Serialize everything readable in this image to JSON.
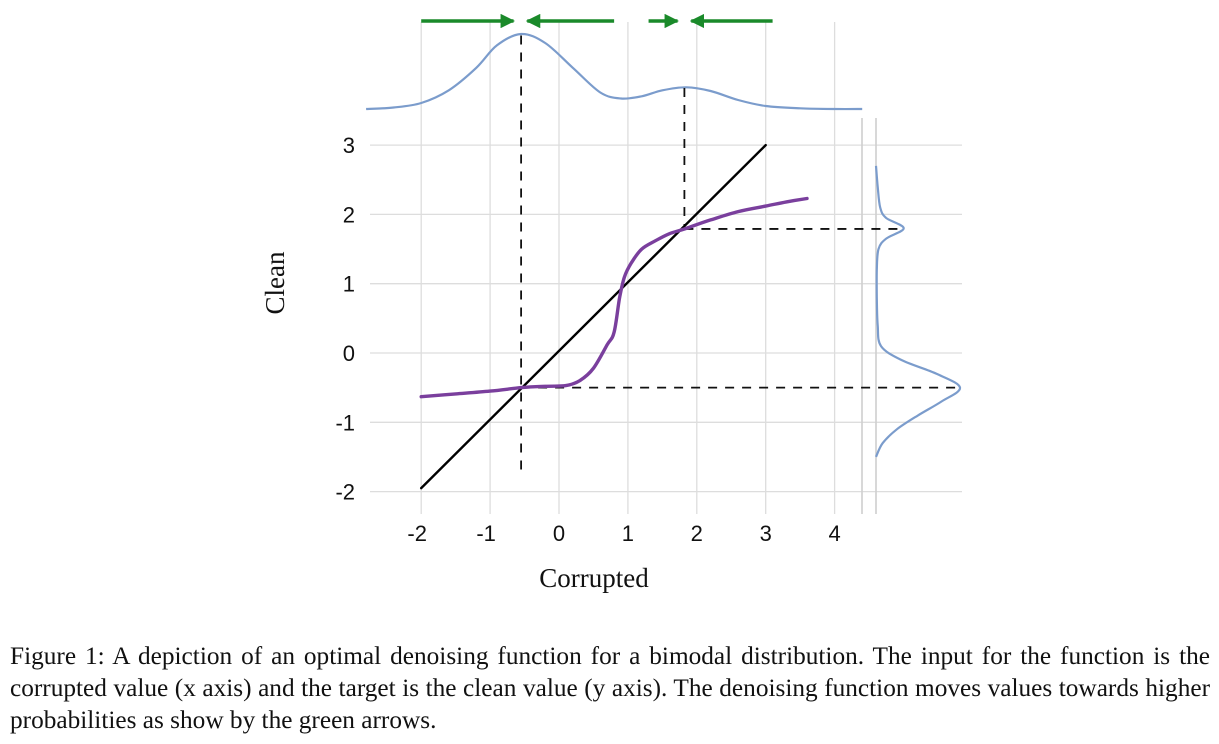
{
  "chart_data": {
    "type": "line",
    "xlabel": "Corrupted",
    "ylabel": "Clean",
    "xlim": [
      -2.6,
      4.4
    ],
    "ylim": [
      -2.2,
      3.2
    ],
    "x_ticks": [
      "-2",
      "-1",
      "0",
      "1",
      "2",
      "3",
      "4"
    ],
    "y_ticks": [
      "-2",
      "-1",
      "0",
      "1",
      "2",
      "3"
    ],
    "grid": true,
    "series": [
      {
        "role": "identity",
        "color": "#000000",
        "points": [
          [
            -2,
            -1.95
          ],
          [
            3,
            3
          ]
        ]
      },
      {
        "role": "denoising-function",
        "color": "#7a3f9d",
        "points": [
          [
            -2,
            -0.63
          ],
          [
            -1.5,
            -0.59
          ],
          [
            -1,
            -0.55
          ],
          [
            -0.55,
            -0.5
          ],
          [
            -0.2,
            -0.48
          ],
          [
            0.1,
            -0.47
          ],
          [
            0.3,
            -0.4
          ],
          [
            0.5,
            -0.22
          ],
          [
            0.7,
            0.12
          ],
          [
            0.8,
            0.3
          ],
          [
            0.88,
            0.8
          ],
          [
            0.95,
            1.1
          ],
          [
            1.05,
            1.3
          ],
          [
            1.2,
            1.5
          ],
          [
            1.4,
            1.62
          ],
          [
            1.6,
            1.72
          ],
          [
            1.82,
            1.79
          ],
          [
            2.2,
            1.92
          ],
          [
            2.6,
            2.04
          ],
          [
            3.0,
            2.12
          ],
          [
            3.3,
            2.18
          ],
          [
            3.6,
            2.23
          ]
        ]
      }
    ],
    "marginal_x_density": {
      "color": "#7b9ccc",
      "points": [
        [
          -2.8,
          0.0
        ],
        [
          -2.4,
          0.02
        ],
        [
          -2.0,
          0.08
        ],
        [
          -1.6,
          0.25
        ],
        [
          -1.2,
          0.55
        ],
        [
          -0.9,
          0.85
        ],
        [
          -0.55,
          1.0
        ],
        [
          -0.2,
          0.88
        ],
        [
          0.2,
          0.55
        ],
        [
          0.6,
          0.22
        ],
        [
          0.9,
          0.14
        ],
        [
          1.2,
          0.17
        ],
        [
          1.5,
          0.25
        ],
        [
          1.85,
          0.29
        ],
        [
          2.2,
          0.24
        ],
        [
          2.6,
          0.12
        ],
        [
          3.0,
          0.04
        ],
        [
          3.5,
          0.01
        ],
        [
          4.0,
          0.0
        ],
        [
          4.4,
          0.0
        ]
      ]
    },
    "marginal_y_density": {
      "color": "#7b9ccc",
      "points": [
        [
          -1.5,
          0.0
        ],
        [
          -1.3,
          0.08
        ],
        [
          -1.1,
          0.25
        ],
        [
          -0.9,
          0.5
        ],
        [
          -0.7,
          0.78
        ],
        [
          -0.5,
          1.0
        ],
        [
          -0.3,
          0.72
        ],
        [
          -0.1,
          0.3
        ],
        [
          0.1,
          0.06
        ],
        [
          0.4,
          0.02
        ],
        [
          0.8,
          0.01
        ],
        [
          1.2,
          0.01
        ],
        [
          1.5,
          0.03
        ],
        [
          1.65,
          0.12
        ],
        [
          1.8,
          0.33
        ],
        [
          1.95,
          0.12
        ],
        [
          2.1,
          0.05
        ],
        [
          2.4,
          0.02
        ],
        [
          2.7,
          0.0
        ]
      ]
    },
    "modes": {
      "x": [
        -0.55,
        1.82
      ],
      "y": [
        -0.5,
        1.79
      ]
    },
    "arrows": {
      "color": "#1a8a2a",
      "items": [
        {
          "from": -2.0,
          "to": -0.66
        },
        {
          "from": 0.8,
          "to": -0.46
        },
        {
          "from": 1.3,
          "to": 1.72
        },
        {
          "from": 3.1,
          "to": 1.92
        }
      ]
    }
  },
  "caption": "Figure 1: A depiction of an optimal denoising function for a bimodal distribution. The input for the function is the corrupted value (x axis) and the target is the clean value (y axis). The denoising function moves values towards higher probabilities as show by the green arrows."
}
